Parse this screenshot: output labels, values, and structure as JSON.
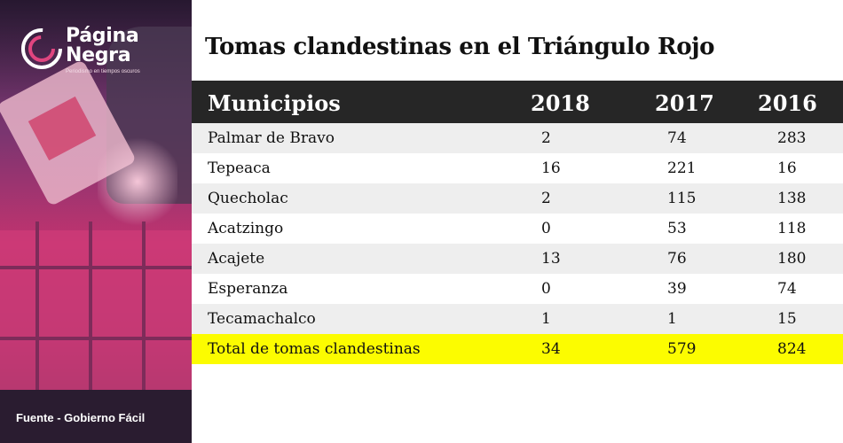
{
  "brand": {
    "name_line1": "Página",
    "name_line2": "Negra",
    "tagline": "Periodismo en tiempos oscuros"
  },
  "source": "Fuente - Gobierno Fácil",
  "colors": {
    "header_bg": "#262626",
    "row_alt": "#eeeeee",
    "total_highlight": "#fcfc00",
    "photo_tint": "#c2336f"
  },
  "chart_data": {
    "type": "table",
    "title": "Tomas clandestinas en el Triángulo Rojo",
    "columns": [
      "Municipios",
      "2018",
      "2017",
      "2016"
    ],
    "rows": [
      {
        "municipio": "Palmar de Bravo",
        "y2018": "2",
        "y2017": "74",
        "y2016": "283"
      },
      {
        "municipio": "Tepeaca",
        "y2018": "16",
        "y2017": "221",
        "y2016": "16"
      },
      {
        "municipio": "Quecholac",
        "y2018": "2",
        "y2017": "115",
        "y2016": "138"
      },
      {
        "municipio": "Acatzingo",
        "y2018": "0",
        "y2017": "53",
        "y2016": "118"
      },
      {
        "municipio": "Acajete",
        "y2018": "13",
        "y2017": "76",
        "y2016": "180"
      },
      {
        "municipio": "Esperanza",
        "y2018": "0",
        "y2017": "39",
        "y2016": "74"
      },
      {
        "municipio": "Tecamachalco",
        "y2018": "1",
        "y2017": "1",
        "y2016": "15"
      }
    ],
    "total": {
      "label": "Total de tomas clandestinas",
      "y2018": "34",
      "y2017": "579",
      "y2016": "824"
    }
  }
}
